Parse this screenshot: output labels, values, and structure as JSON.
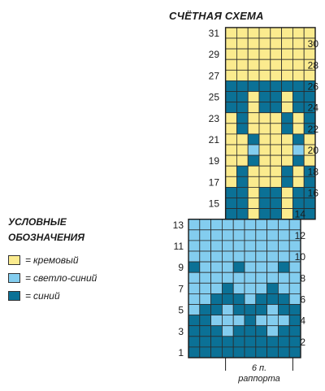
{
  "title": "СЧЁТНАЯ СХЕМА",
  "legend": {
    "title_line1": "УСЛОВНЫЕ",
    "title_line2": "ОБОЗНАЧЕНИЯ",
    "items": [
      {
        "key": "C",
        "label": "кремовый",
        "color": "#fbeb8e"
      },
      {
        "key": "L",
        "label": "светло-синий",
        "color": "#83cdef"
      },
      {
        "key": "D",
        "label": "синий",
        "color": "#0b7196"
      }
    ]
  },
  "repeat_label_line1": "6 п.",
  "repeat_label_line2": "раппорта",
  "grid_rows_top_to_bottom": [
    "CCCCCCCC",
    "CCCCCCCC",
    "CCCCCCCC",
    "CCCCCCCC",
    "CCCCCCCC",
    "DDDDDDDD",
    "DDCDDCDD",
    "DDCDDCDD",
    "CDCCCDCD",
    "CDCCCDCD",
    "CCDCCCDC",
    "CCLCCCLC",
    "CCDCCCDC",
    "CDCCCDCD",
    "CDCCCDCD",
    "DDCDDCDD",
    "DDCDDCDD",
    "DDCDDCDD",
    "LLLLLLLLLL",
    "LLLLLLLLLL",
    "LLLLLLLLLL",
    "LLLLLLLLLL",
    "DLLLDLLLDL",
    "LLLLLLLLLL",
    "LLLDLLLDLL",
    "LLDDDLDDDL",
    "LDDLDDDLDD",
    "DDLLLDLLLD",
    "DDDLDDDLDD",
    "DDDDDDDDDD",
    "DDDDDDDDDD"
  ],
  "left_row_labels": [
    "31",
    "29",
    "27",
    "25",
    "23",
    "21",
    "19",
    "17",
    "15",
    "13",
    "11",
    "9",
    "7",
    "5",
    "3",
    "1"
  ],
  "right_row_labels": [
    "30",
    "28",
    "26",
    "24",
    "22",
    "20",
    "18",
    "16",
    "14",
    "12",
    "10",
    "8",
    "6",
    "4",
    "2"
  ]
}
